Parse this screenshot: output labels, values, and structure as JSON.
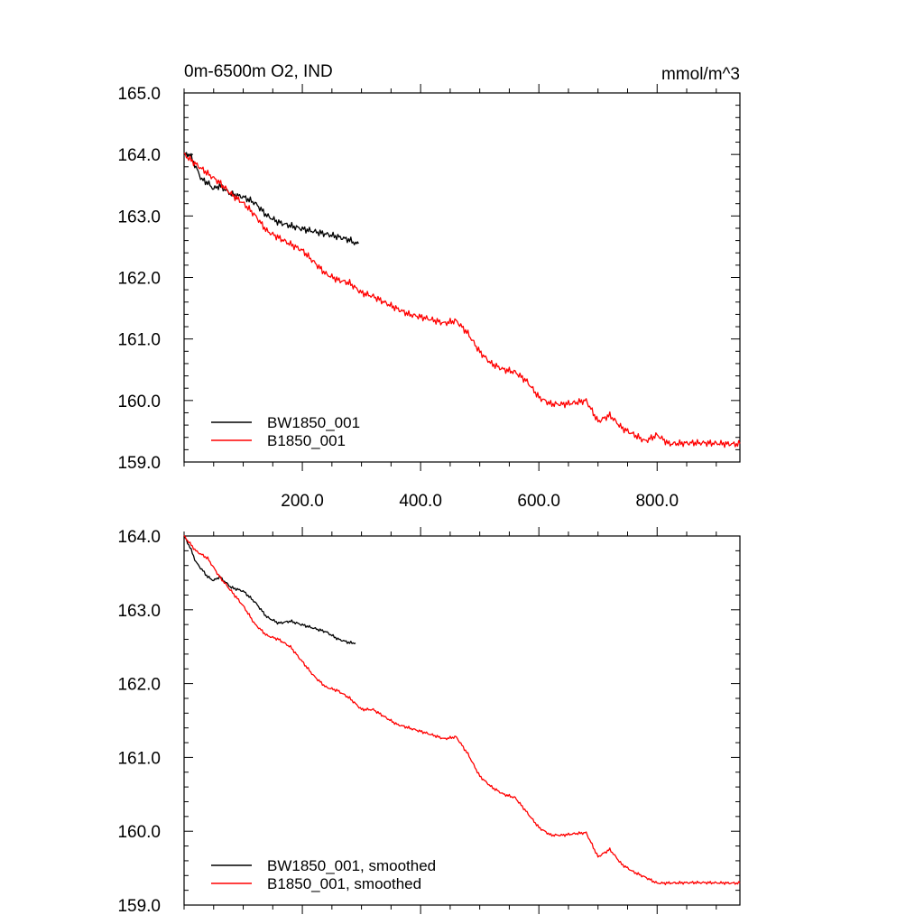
{
  "figure": {
    "title_left": "0m-6500m O2, IND",
    "title_right": "mmol/m^3"
  },
  "colors": {
    "BW1850_001": "#000000",
    "B1850_001": "#ff0000"
  },
  "chart_data": [
    {
      "type": "line",
      "panel": "top",
      "xlim": [
        0,
        940
      ],
      "ylim": [
        159.0,
        165.0
      ],
      "xticks": [
        200,
        400,
        600,
        800
      ],
      "xtick_labels": [
        "200.0",
        "400.0",
        "600.0",
        "800.0"
      ],
      "yticks": [
        159,
        160,
        161,
        162,
        163,
        164,
        165
      ],
      "ytick_labels": [
        "159.0",
        "160.0",
        "161.0",
        "162.0",
        "163.0",
        "164.0",
        "165.0"
      ],
      "legend_position": "bottom-left",
      "series": [
        {
          "name": "BW1850_001",
          "x": [
            0,
            10,
            20,
            30,
            40,
            50,
            60,
            80,
            100,
            120,
            140,
            160,
            180,
            200,
            220,
            240,
            260,
            280,
            290,
            295
          ],
          "y": [
            164.0,
            164.0,
            163.8,
            163.6,
            163.55,
            163.45,
            163.5,
            163.35,
            163.3,
            163.2,
            163.0,
            162.9,
            162.85,
            162.8,
            162.75,
            162.7,
            162.65,
            162.6,
            162.55,
            162.55
          ]
        },
        {
          "name": "B1850_001",
          "x": [
            0,
            20,
            40,
            60,
            80,
            100,
            120,
            140,
            160,
            180,
            200,
            220,
            240,
            260,
            280,
            300,
            320,
            340,
            360,
            380,
            400,
            420,
            440,
            460,
            480,
            500,
            520,
            540,
            560,
            580,
            600,
            620,
            640,
            660,
            680,
            700,
            720,
            740,
            760,
            780,
            800,
            820,
            840,
            860,
            880,
            900,
            920,
            940
          ],
          "y": [
            164.0,
            163.85,
            163.7,
            163.55,
            163.35,
            163.2,
            163.0,
            162.75,
            162.65,
            162.55,
            162.45,
            162.25,
            162.05,
            161.95,
            161.9,
            161.75,
            161.7,
            161.6,
            161.5,
            161.4,
            161.35,
            161.3,
            161.25,
            161.3,
            161.1,
            160.8,
            160.6,
            160.5,
            160.45,
            160.3,
            160.05,
            159.95,
            159.95,
            159.97,
            160.0,
            159.65,
            159.75,
            159.55,
            159.45,
            159.35,
            159.45,
            159.3,
            159.3,
            159.3,
            159.3,
            159.3,
            159.3,
            159.3
          ]
        }
      ]
    },
    {
      "type": "line",
      "panel": "bottom",
      "xlim": [
        0,
        940
      ],
      "ylim": [
        159.0,
        164.0
      ],
      "xticks": [
        200,
        400,
        600,
        800
      ],
      "xtick_labels": [],
      "yticks": [
        159,
        160,
        161,
        162,
        163,
        164
      ],
      "ytick_labels": [
        "159.0",
        "160.0",
        "161.0",
        "162.0",
        "163.0",
        "164.0"
      ],
      "legend_position": "bottom-left",
      "series": [
        {
          "name": "BW1850_001, smoothed",
          "x": [
            0,
            10,
            20,
            30,
            40,
            50,
            60,
            80,
            100,
            120,
            140,
            160,
            180,
            200,
            220,
            240,
            260,
            280,
            290
          ],
          "y": [
            164.0,
            163.85,
            163.65,
            163.55,
            163.45,
            163.4,
            163.45,
            163.3,
            163.25,
            163.1,
            162.9,
            162.82,
            162.85,
            162.8,
            162.75,
            162.7,
            162.6,
            162.55,
            162.55
          ]
        },
        {
          "name": "B1850_001, smoothed",
          "x": [
            0,
            20,
            40,
            60,
            80,
            100,
            120,
            140,
            160,
            180,
            200,
            220,
            240,
            260,
            280,
            300,
            320,
            340,
            360,
            380,
            400,
            420,
            440,
            460,
            480,
            500,
            520,
            540,
            560,
            580,
            600,
            620,
            640,
            660,
            680,
            700,
            720,
            740,
            760,
            780,
            800,
            820,
            840,
            860,
            880,
            900,
            920,
            940
          ],
          "y": [
            164.0,
            163.8,
            163.7,
            163.45,
            163.25,
            163.05,
            162.8,
            162.65,
            162.6,
            162.5,
            162.3,
            162.1,
            161.95,
            161.9,
            161.8,
            161.65,
            161.65,
            161.55,
            161.45,
            161.4,
            161.35,
            161.3,
            161.25,
            161.28,
            161.05,
            160.75,
            160.6,
            160.5,
            160.45,
            160.25,
            160.05,
            159.95,
            159.95,
            159.97,
            159.98,
            159.65,
            159.75,
            159.55,
            159.45,
            159.38,
            159.3,
            159.3,
            159.3,
            159.3,
            159.3,
            159.3,
            159.3,
            159.3
          ]
        }
      ]
    }
  ]
}
